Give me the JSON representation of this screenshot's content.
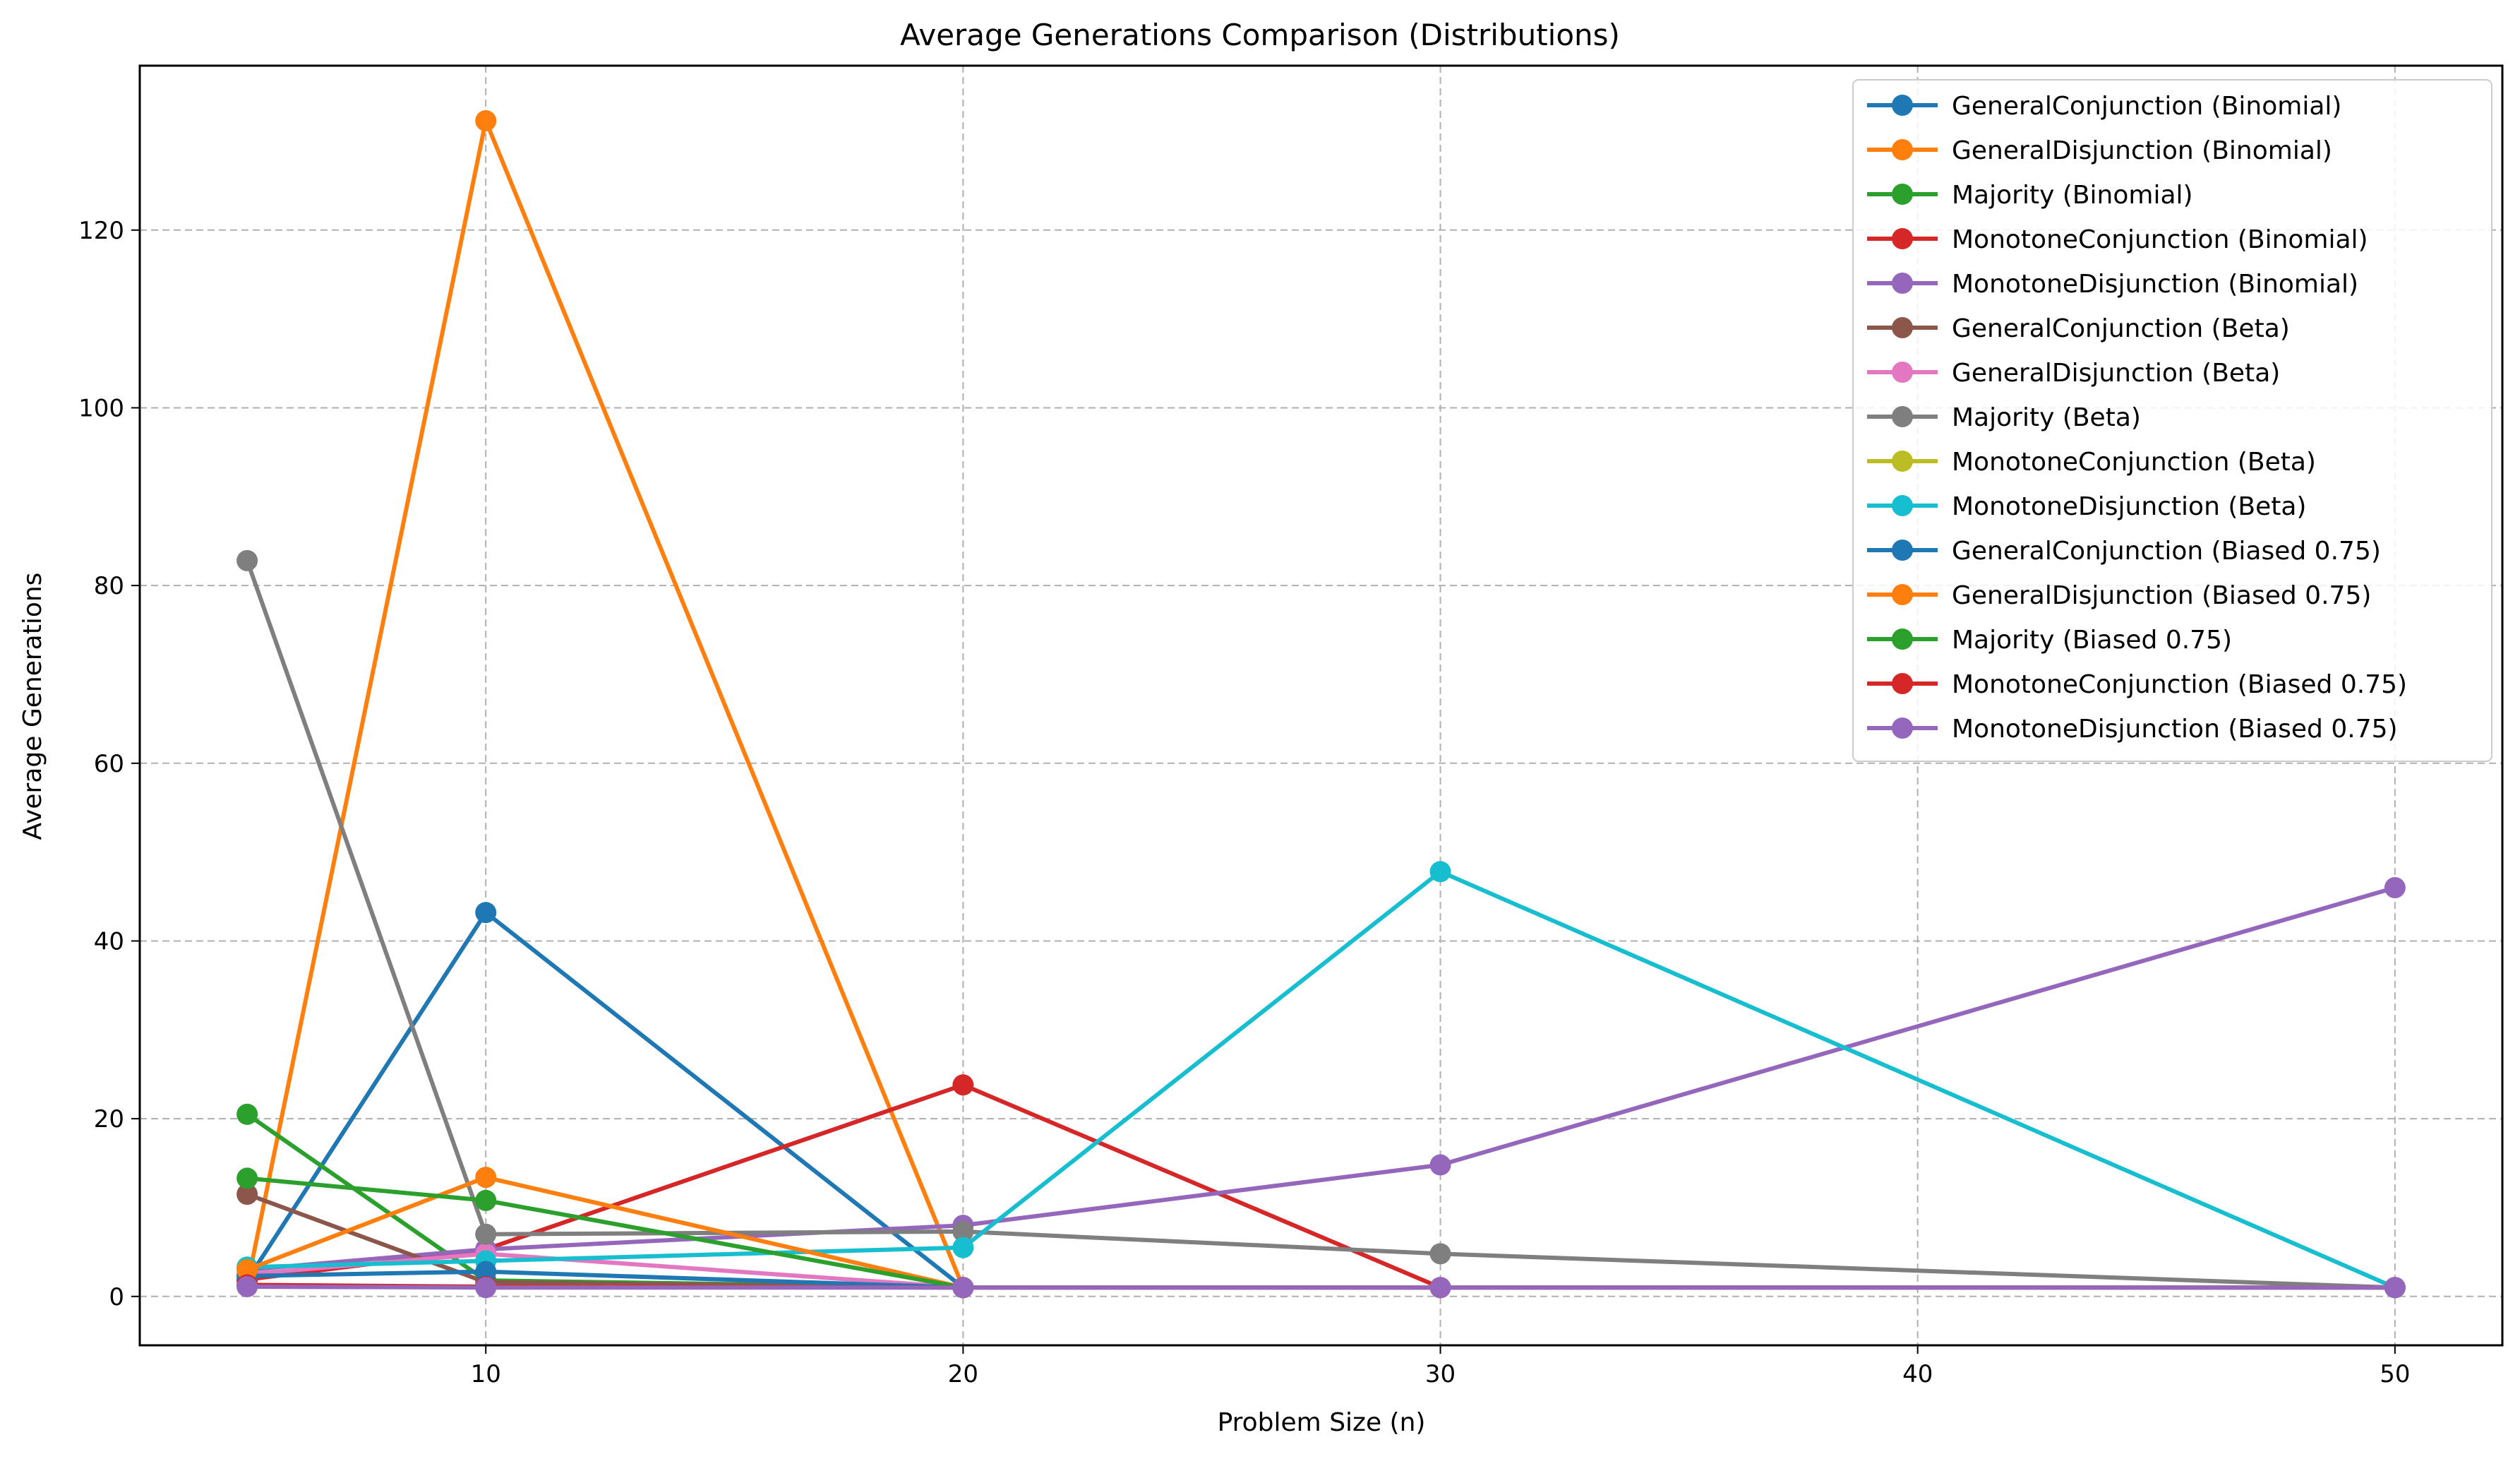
{
  "chart_data": {
    "type": "line",
    "title": "Average Generations Comparison (Distributions)",
    "xlabel": "Problem Size (n)",
    "ylabel": "Average Generations",
    "xlim": [
      2.75,
      52.25
    ],
    "ylim": [
      -5.5,
      138.5
    ],
    "xticks": [
      10,
      20,
      30,
      40,
      50
    ],
    "yticks": [
      0,
      20,
      40,
      60,
      80,
      100,
      120
    ],
    "grid": true,
    "legend_position": "top-right",
    "series": [
      {
        "name": "GeneralConjunction (Binomial)",
        "color": "#1f77b4",
        "x": [
          5,
          10,
          20
        ],
        "y": [
          1.8,
          43.2,
          1.0
        ]
      },
      {
        "name": "GeneralDisjunction (Binomial)",
        "color": "#ff7f0e",
        "x": [
          5,
          10,
          20
        ],
        "y": [
          1.2,
          132.3,
          1.0
        ]
      },
      {
        "name": "Majority (Binomial)",
        "color": "#2ca02c",
        "x": [
          5,
          10,
          20
        ],
        "y": [
          20.5,
          1.8,
          1.0
        ]
      },
      {
        "name": "MonotoneConjunction (Binomial)",
        "color": "#d62728",
        "x": [
          5,
          10,
          20,
          30
        ],
        "y": [
          1.9,
          5.3,
          23.8,
          1.0
        ]
      },
      {
        "name": "MonotoneDisjunction (Binomial)",
        "color": "#9467bd",
        "x": [
          5,
          10,
          20,
          30,
          50
        ],
        "y": [
          3.0,
          5.3,
          8.0,
          14.8,
          46.0
        ]
      },
      {
        "name": "GeneralConjunction (Beta)",
        "color": "#8c564b",
        "x": [
          5,
          10,
          20
        ],
        "y": [
          11.5,
          1.6,
          1.0
        ]
      },
      {
        "name": "GeneralDisjunction (Beta)",
        "color": "#e377c2",
        "x": [
          5,
          10,
          20
        ],
        "y": [
          2.5,
          4.8,
          1.0
        ]
      },
      {
        "name": "Majority (Beta)",
        "color": "#7f7f7f",
        "x": [
          5,
          10,
          20,
          30,
          50
        ],
        "y": [
          82.8,
          7.0,
          7.3,
          4.8,
          1.0
        ]
      },
      {
        "name": "MonotoneConjunction (Beta)",
        "color": "#bcbd22",
        "x": [
          5,
          10,
          20,
          30,
          50
        ],
        "y": [
          1.2,
          1.1,
          1.0,
          1.0,
          1.0
        ]
      },
      {
        "name": "MonotoneDisjunction (Beta)",
        "color": "#17becf",
        "x": [
          5,
          10,
          20,
          30,
          50
        ],
        "y": [
          3.3,
          4.0,
          5.5,
          47.8,
          1.0
        ]
      },
      {
        "name": "GeneralConjunction (Biased 0.75)",
        "color": "#1f77b4",
        "x": [
          5,
          10,
          20
        ],
        "y": [
          2.3,
          2.8,
          1.0
        ]
      },
      {
        "name": "GeneralDisjunction (Biased 0.75)",
        "color": "#ff7f0e",
        "x": [
          5,
          10,
          20
        ],
        "y": [
          3.0,
          13.4,
          1.0
        ]
      },
      {
        "name": "Majority (Biased 0.75)",
        "color": "#2ca02c",
        "x": [
          5,
          10,
          20
        ],
        "y": [
          13.3,
          10.8,
          1.0
        ]
      },
      {
        "name": "MonotoneConjunction (Biased 0.75)",
        "color": "#d62728",
        "x": [
          5,
          10,
          20,
          30,
          50
        ],
        "y": [
          1.3,
          1.1,
          1.0,
          1.0,
          1.0
        ]
      },
      {
        "name": "MonotoneDisjunction (Biased 0.75)",
        "color": "#9467bd",
        "x": [
          5,
          10,
          20,
          30,
          50
        ],
        "y": [
          1.1,
          1.0,
          1.0,
          1.0,
          1.0
        ]
      }
    ]
  }
}
